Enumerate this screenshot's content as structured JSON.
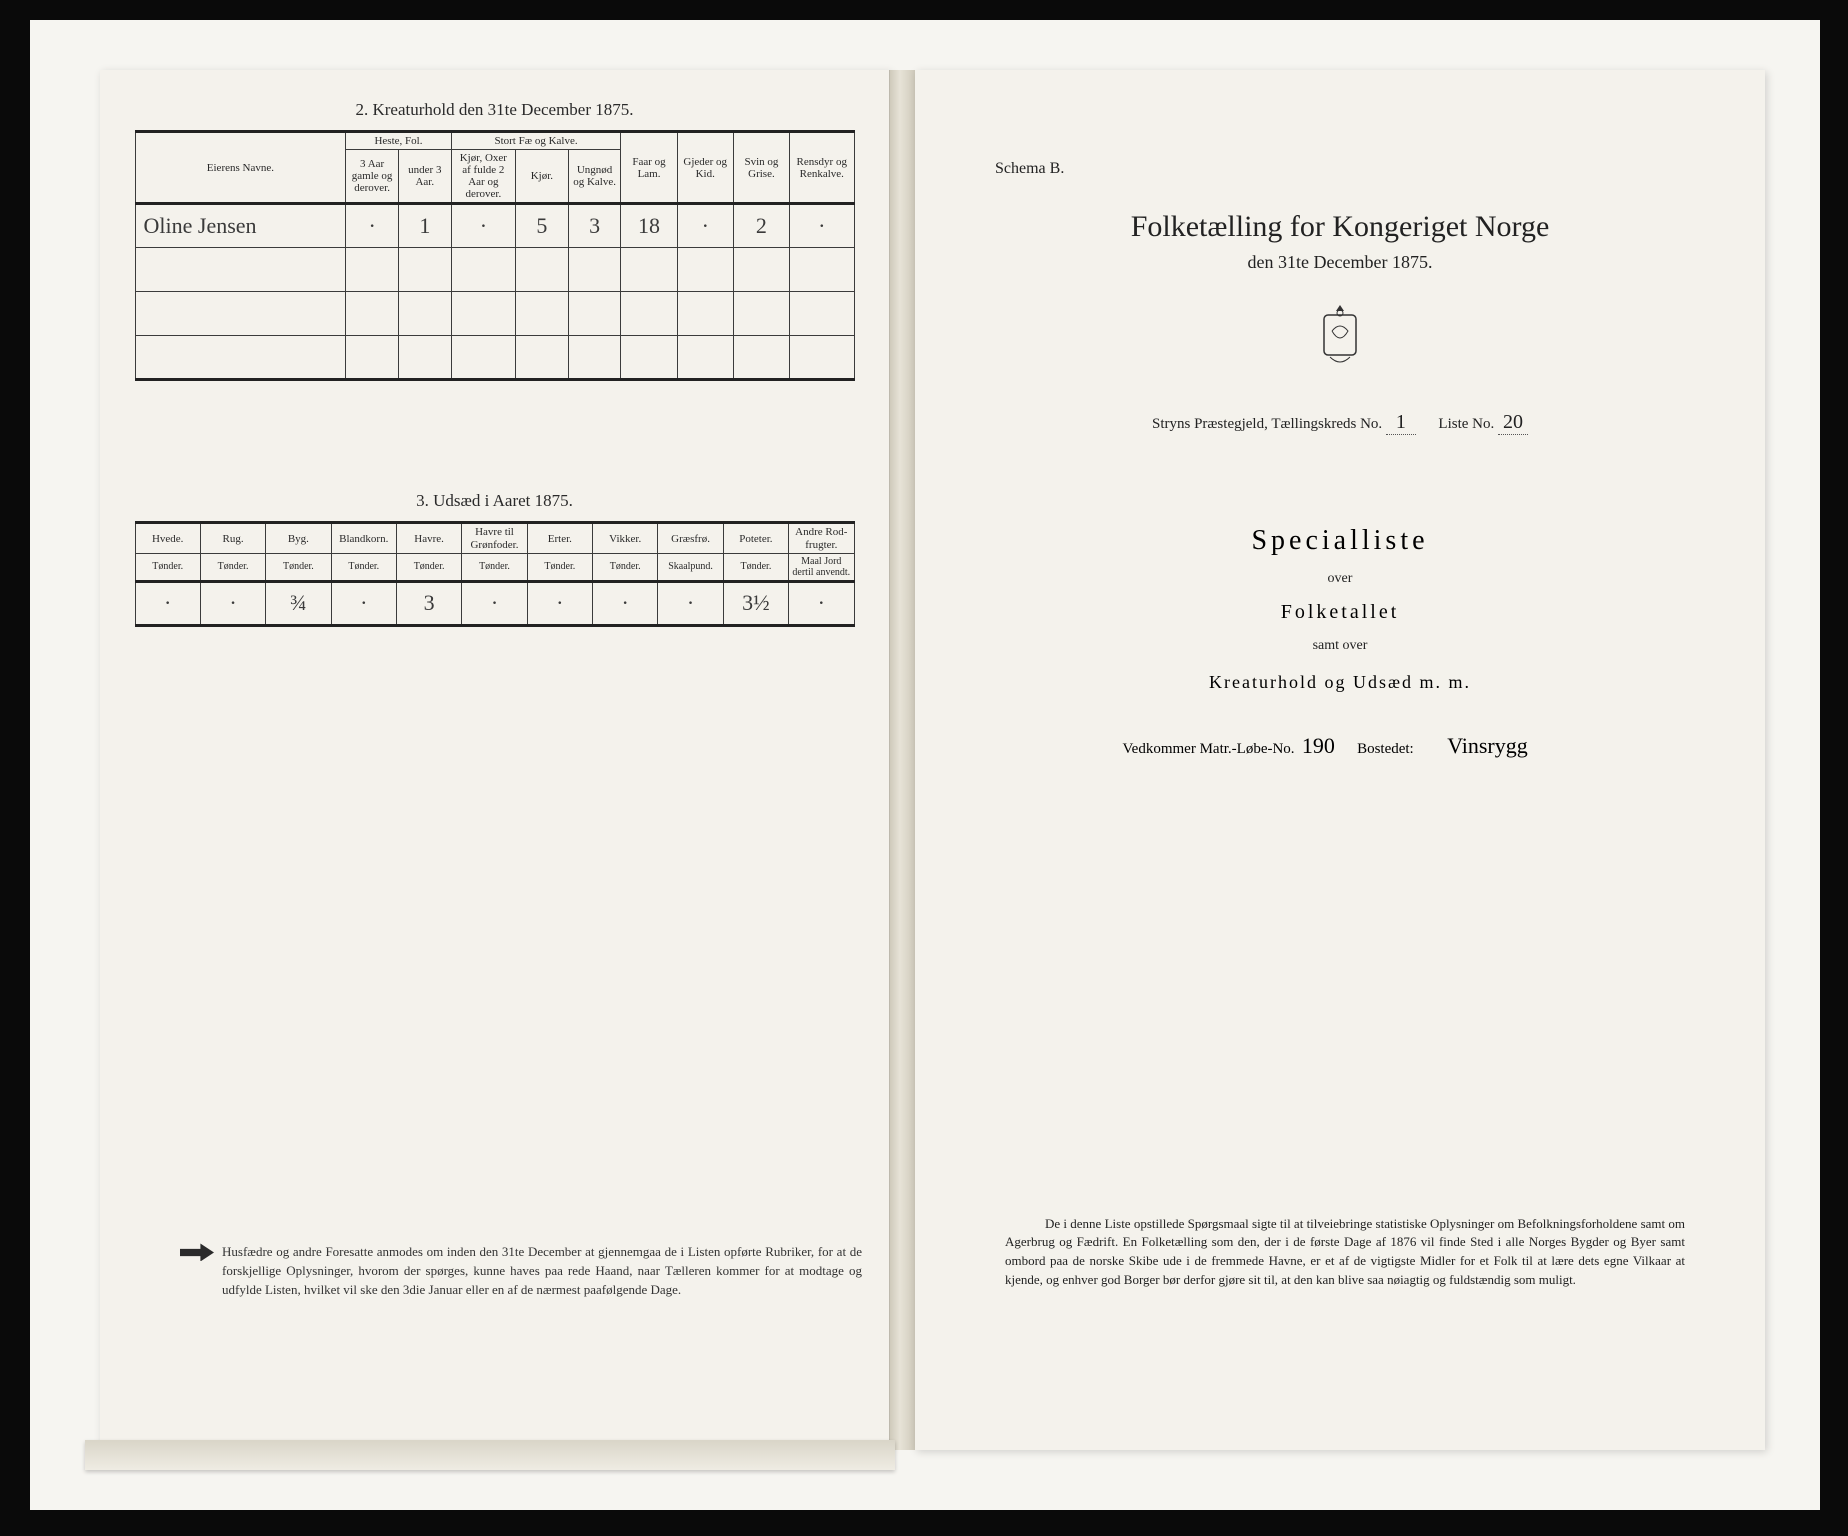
{
  "left": {
    "section2_title": "2.  Kreaturhold den 31te December 1875.",
    "table2": {
      "headers": {
        "owner": "Eierens Navne.",
        "heste_group": "Heste, Fol.",
        "heste_a": "3 Aar gamle og derover.",
        "heste_b": "under 3 Aar.",
        "storfe_group": "Stort Fæ og Kalve.",
        "storfe_a": "Kjør, Oxer af fulde 2 Aar og derover.",
        "storfe_b": "Kjør.",
        "storfe_c": "Ungnød og Kalve.",
        "faar": "Faar og Lam.",
        "gjeder": "Gjeder og Kid.",
        "svin": "Svin og Grise.",
        "rensdyr": "Rensdyr og Renkalve."
      },
      "row": {
        "owner": "Oline Jensen",
        "heste_a": "·",
        "heste_b": "1",
        "storfe_a": "·",
        "storfe_b": "5",
        "storfe_c": "3",
        "faar": "18",
        "gjeder": "·",
        "svin": "2",
        "rensdyr": "·"
      }
    },
    "section3_title": "3.  Udsæd i Aaret 1875.",
    "table3": {
      "headers": [
        "Hvede.",
        "Rug.",
        "Byg.",
        "Blandkorn.",
        "Havre.",
        "Havre til Grønfoder.",
        "Erter.",
        "Vikker.",
        "Græsfrø.",
        "Poteter.",
        "Andre Rod-frugter."
      ],
      "subheaders": [
        "Tønder.",
        "Tønder.",
        "Tønder.",
        "Tønder.",
        "Tønder.",
        "Tønder.",
        "Tønder.",
        "Tønder.",
        "Skaalpund.",
        "Tønder.",
        "Maal Jord dertil anvendt."
      ],
      "row": [
        "·",
        "·",
        "¾",
        "·",
        "3",
        "·",
        "·",
        "·",
        "·",
        "3½",
        "·"
      ]
    },
    "footnote": "Husfædre og andre Foresatte anmodes om inden den 31te December at gjennemgaa de i Listen opførte Rubriker, for at de forskjellige Oplysninger, hvorom der spørges, kunne haves paa rede Haand, naar Tælleren kommer for at modtage og udfylde Listen, hvilket vil ske den 3die Januar eller en af de nærmest paafølgende Dage."
  },
  "right": {
    "schema": "Schema B.",
    "title": "Folketælling for Kongeriget Norge",
    "subtitle": "den 31te December 1875.",
    "parish_line_a": "Stryns Præstegjeld,  Tællingskreds No.",
    "kreds_no": "1",
    "parish_line_b": "Liste No.",
    "liste_no": "20",
    "heading": "Specialliste",
    "over": "over",
    "folketallet": "Folketallet",
    "samt": "samt over",
    "kreatur": "Kreaturhold og Udsæd m. m.",
    "vedk_a": "Vedkommer Matr.-Løbe-No.",
    "matr_no": "190",
    "vedk_b": "Bostedet:",
    "bosted": "Vinsrygg",
    "footnote": "De i denne Liste opstillede Spørgsmaal sigte til at tilveiebringe statistiske Oplysninger om Befolkningsforholdene samt om Agerbrug og Fædrift.  En Folketælling som den, der i de første Dage af 1876 vil finde Sted i alle Norges Bygder og Byer samt ombord paa de norske Skibe ude i de fremmede Havne, er et af de vigtigste Midler for et Folk til at lære dets egne Vilkaar at kjende, og enhver god Borger bør derfor gjøre sit til, at den kan blive saa nøiagtig og fuldstændig som muligt."
  }
}
